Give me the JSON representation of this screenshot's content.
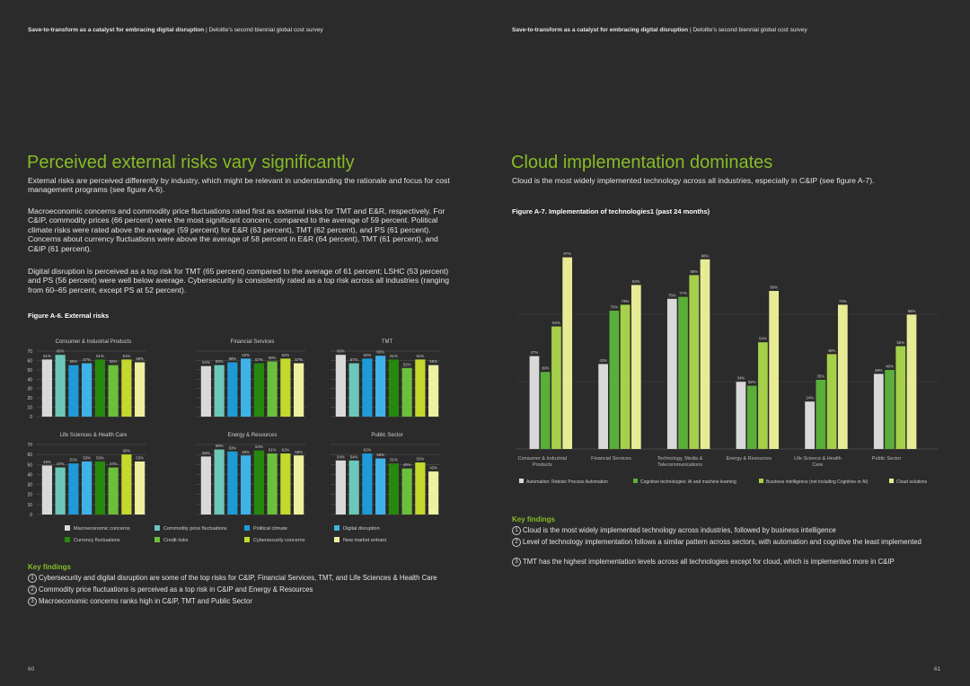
{
  "left": {
    "header": {
      "bold": "Save-to-transform as a catalyst for embracing digital disruption",
      "rest": " | Deloitte's second biennial global cost survey"
    },
    "title": "Perceived external risks vary significantly",
    "paragraphs": [
      "External risks are perceived differently by industry, which might be relevant in understanding the rationale and focus for cost management programs (see figure A-6).",
      "Macroeconomic concerns and commodity price fluctuations rated first as external risks for TMT and E&R, respectively. For C&IP, commodity prices (66 percent) were the most significant concern, compared to the average of 59 percent. Political climate risks were rated above the average (59 percent) for E&R (63 percent), TMT (62 percent), and PS (61 percent). Concerns about currency fluctuations were above the average of 58 percent in E&R (64 percent), TMT (61 percent), and C&IP (61 percent).",
      "Digital disruption is perceived as a top risk for TMT (65 percent) compared to the average of 61 percent; LSHC (53 percent) and PS (56 percent) were well below average. Cybersecurity is consistently rated as a top risk across all industries (ranging from 60–65 percent, except PS at 52 percent)."
    ],
    "figure": {
      "title": "Figure A-6. External risks",
      "type": "bar",
      "ylim": [
        0,
        70
      ],
      "yticks": [
        0,
        10,
        20,
        30,
        40,
        50,
        60,
        70
      ],
      "series": [
        {
          "name": "Macroeconomic concerns",
          "color": "#d9d9d9"
        },
        {
          "name": "Commodity price fluctuations",
          "color": "#6dc7b8"
        },
        {
          "name": "Political climate",
          "color": "#1e9bd7"
        },
        {
          "name": "Digital disruption",
          "color": "#3fb3e8"
        },
        {
          "name": "Currency fluctuations",
          "color": "#26890d"
        },
        {
          "name": "Credit risks",
          "color": "#6cbf3c"
        },
        {
          "name": "Cybersecurity concerns",
          "color": "#c4d82e"
        },
        {
          "name": "New market entrant",
          "color": "#eef0a0"
        }
      ],
      "charts": [
        {
          "title": "Consumer & Industrial Products",
          "values": [
            61,
            66,
            55,
            57,
            61,
            55,
            61,
            58
          ],
          "value_labels": [
            "61%",
            "66%",
            "55%",
            "57%",
            "61%",
            "55%",
            "61%",
            "58%"
          ]
        },
        {
          "title": "Financial Services",
          "values": [
            54,
            55,
            58,
            62,
            57,
            59,
            62,
            57
          ],
          "value_labels": [
            "54%",
            "55%",
            "58%",
            "62%",
            "57%",
            "59%",
            "62%",
            "57%"
          ]
        },
        {
          "title": "TMT",
          "values": [
            66,
            57,
            62,
            65,
            61,
            52,
            61,
            55
          ],
          "value_labels": [
            "66%",
            "57%",
            "62%",
            "65%",
            "61%",
            "52%",
            "61%",
            "55%"
          ]
        },
        {
          "title": "Life Sciences & Health Care",
          "values": [
            49,
            47,
            51,
            53,
            53,
            47,
            60,
            53
          ],
          "value_labels": [
            "49%",
            "47%",
            "51%",
            "53%",
            "53%",
            "47%",
            "60%",
            "53%"
          ]
        },
        {
          "title": "Energy & Resources",
          "values": [
            58,
            65,
            63,
            59,
            64,
            61,
            61,
            59
          ],
          "value_labels": [
            "58%",
            "65%",
            "63%",
            "59%",
            "64%",
            "61%",
            "61%",
            "59%"
          ]
        },
        {
          "title": "Public Sector",
          "values": [
            54,
            54,
            61,
            56,
            51,
            46,
            52,
            43
          ],
          "value_labels": [
            "54%",
            "54%",
            "61%",
            "56%",
            "51%",
            "46%",
            "52%",
            "43%"
          ]
        }
      ]
    },
    "key_findings": {
      "title": "Key findings",
      "items": [
        {
          "number": 1,
          "text": "Cybersecurity and digital disruption are some of the top risks for C&IP, Financial Services, TMT, and Life Sciences & Health Care"
        },
        {
          "number": 2,
          "text": "Commodity price fluctuations is perceived as a top risk in C&IP and Energy & Resources"
        },
        {
          "number": 3,
          "text": "Macroeconomic concerns ranks high in C&IP, TMT and Public Sector"
        }
      ]
    },
    "page_number": 60
  },
  "right": {
    "header": {
      "bold": "Save-to-transform as a catalyst for embracing digital disruption",
      "rest": " | Deloitte's second biennial global cost survey"
    },
    "title": "Cloud implementation dominates",
    "paragraphs": [
      "Cloud is the most widely implemented technology across all industries, especially in C&IP (see figure A-7)."
    ],
    "chart_data": {
      "type": "bar",
      "title": "Figure A-7. Implementation of technologies1 (past 24 months)",
      "categories": [
        "Consumer & Industrial Products",
        "Financial Services",
        "Technology, Media & Telecommunications",
        "Energy & Resources",
        "Life Science & Health Care",
        "Public Sector"
      ],
      "ylim": [
        0,
        100
      ],
      "series": [
        {
          "name": "Automation: Robotic Process Automation",
          "color": "#d9d9d9",
          "values": [
            47,
            43,
            76,
            34,
            24,
            38
          ],
          "value_labels": [
            "47%",
            "43%",
            "76%",
            "34%",
            "24%",
            "38%"
          ]
        },
        {
          "name": "Cognitive technologies: AI and machine learning",
          "color": "#5aae3a",
          "values": [
            39,
            70,
            77,
            32,
            35,
            40
          ],
          "value_labels": [
            "39%",
            "70%",
            "77%",
            "32%",
            "35%",
            "40%"
          ]
        },
        {
          "name": "Business intelligence (not including Cognitive or AI)",
          "color": "#a6d04a",
          "values": [
            62,
            73,
            88,
            54,
            48,
            52
          ],
          "value_labels": [
            "62%",
            "73%",
            "88%",
            "54%",
            "48%",
            "52%"
          ]
        },
        {
          "name": "Cloud solutions",
          "color": "#e8eb96",
          "values": [
            97,
            83,
            96,
            80,
            73,
            68
          ],
          "value_labels": [
            "97%",
            "83%",
            "96%",
            "80%",
            "73%",
            "68%"
          ]
        }
      ]
    },
    "key_findings": {
      "title": "Key findings",
      "items": [
        {
          "number": 1,
          "text": "Cloud is the most widely implemented technology across industries, followed by business intelligence"
        },
        {
          "number": 2,
          "text": "Level of technology implementation follows a similar pattern across sectors, with automation and cognitive the least implemented"
        },
        {
          "number": 3,
          "text": "TMT has the highest implementation levels across all technologies except for cloud, which is implemented more in C&IP"
        }
      ]
    },
    "page_number": 61
  }
}
